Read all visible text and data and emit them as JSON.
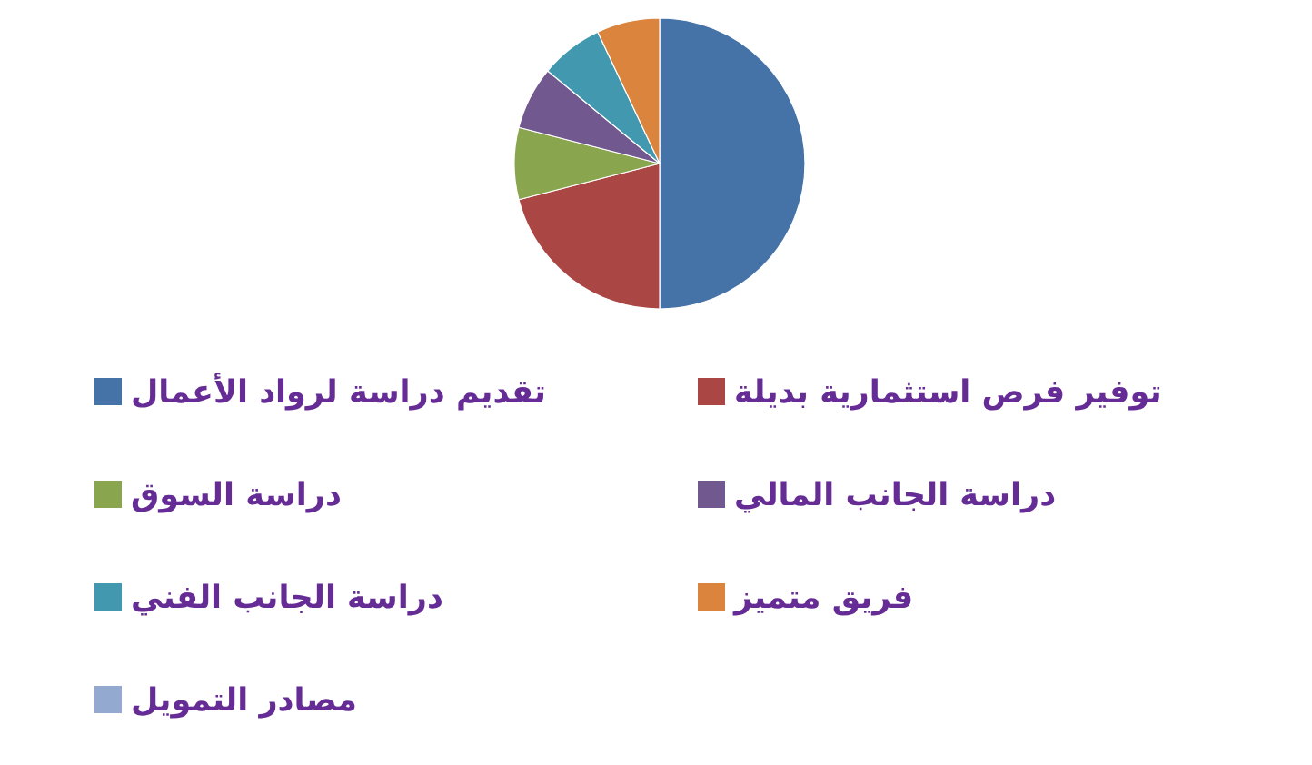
{
  "chart_data": {
    "type": "pie",
    "categories": [
      "تقديم دراسة لرواد الأعمال",
      "توفير فرص استثمارية بديلة",
      "دراسة السوق",
      "دراسة الجانب المالي",
      "دراسة الجانب الفني",
      "فريق متميز",
      "مصادر التمويل"
    ],
    "values": [
      50,
      21,
      8,
      7,
      7,
      7,
      0
    ],
    "colors": [
      "#4572a7",
      "#aa4643",
      "#89a54e",
      "#71588f",
      "#4198af",
      "#db843d",
      "#93a9cf"
    ],
    "legend": "bottom"
  }
}
